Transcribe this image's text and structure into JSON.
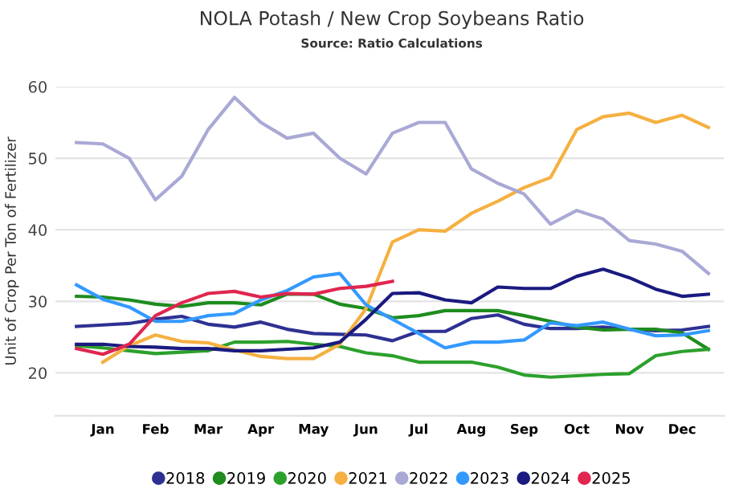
{
  "chart_data": {
    "type": "line",
    "title": "NOLA Potash / New Crop Soybeans Ratio",
    "subtitle": "Source: Ratio Calculations",
    "ylabel": "Unit of Crop Per Ton of Fertilizer",
    "categories": [
      null,
      "Jan",
      null,
      "Feb",
      null,
      "Mar",
      null,
      "Apr",
      null,
      "May",
      null,
      "Jun",
      null,
      "Jul",
      null,
      "Aug",
      null,
      "Sep",
      null,
      "Oct",
      null,
      "Nov",
      null,
      "Dec",
      null
    ],
    "ylim": [
      14,
      60
    ],
    "yticks": [
      20,
      30,
      40,
      50,
      60
    ],
    "grid": "y",
    "legend": "bottom",
    "series": [
      {
        "name": "2018",
        "color": "#2e3192",
        "values": [
          26.5,
          26.7,
          26.9,
          27.5,
          27.9,
          26.8,
          26.4,
          27.1,
          26.1,
          25.5,
          25.4,
          25.3,
          24.5,
          25.8,
          25.8,
          27.6,
          28.1,
          26.8,
          26.2,
          26.2,
          26.4,
          26.1,
          25.9,
          26.0,
          26.5
        ]
      },
      {
        "name": "2019",
        "color": "#1e8c1e",
        "values": [
          30.7,
          30.6,
          30.2,
          29.6,
          29.3,
          29.8,
          29.8,
          29.5,
          31.0,
          31.0,
          29.6,
          29.0,
          27.7,
          28.0,
          28.7,
          28.7,
          28.7,
          28.0,
          27.2,
          26.4,
          26.0,
          26.1,
          26.1,
          25.6,
          23.3
        ]
      },
      {
        "name": "2020",
        "color": "#2ca02c",
        "values": [
          23.8,
          23.5,
          23.1,
          22.7,
          22.9,
          23.1,
          24.3,
          24.3,
          24.4,
          24.0,
          23.7,
          22.8,
          22.4,
          21.5,
          21.5,
          21.5,
          20.8,
          19.7,
          19.4,
          19.6,
          19.8,
          19.9,
          22.4,
          23.0,
          23.3
        ]
      },
      {
        "name": "2021",
        "color": "#f5b041",
        "values": [
          null,
          21.5,
          23.8,
          25.3,
          24.4,
          24.2,
          23.2,
          22.3,
          22.0,
          22.0,
          24.0,
          29.0,
          38.3,
          40.0,
          39.8,
          42.3,
          44.0,
          45.9,
          47.3,
          54.0,
          55.8,
          56.3,
          55.0,
          56.0,
          54.3
        ]
      },
      {
        "name": "2022",
        "color": "#a9a9d6",
        "values": [
          52.2,
          52.0,
          50.0,
          44.2,
          47.5,
          54.0,
          58.5,
          55.0,
          52.8,
          53.5,
          50.0,
          47.8,
          53.5,
          55.0,
          55.0,
          48.5,
          46.5,
          45.0,
          40.8,
          42.7,
          41.5,
          38.5,
          38.0,
          37.0,
          33.9
        ]
      },
      {
        "name": "2023",
        "color": "#3399ff",
        "values": [
          32.3,
          30.3,
          29.2,
          27.2,
          27.2,
          28.0,
          28.3,
          30.2,
          31.5,
          33.4,
          33.9,
          29.5,
          27.5,
          25.5,
          23.5,
          24.3,
          24.3,
          24.6,
          27.0,
          26.6,
          27.1,
          26.1,
          25.2,
          25.3,
          25.9
        ]
      },
      {
        "name": "2024",
        "color": "#1a1a80",
        "values": [
          24.0,
          24.0,
          23.7,
          23.6,
          23.4,
          23.4,
          23.1,
          23.1,
          23.3,
          23.5,
          24.3,
          27.5,
          31.1,
          31.2,
          30.2,
          29.8,
          32.0,
          31.8,
          31.8,
          33.5,
          34.5,
          33.3,
          31.7,
          30.7,
          31.0
        ]
      },
      {
        "name": "2025",
        "color": "#e0264f",
        "values": [
          23.4,
          22.6,
          24.0,
          28.0,
          29.8,
          31.1,
          31.4,
          30.6,
          31.1,
          31.0,
          31.8,
          32.1,
          32.8,
          null,
          null,
          null,
          null,
          null,
          null,
          null,
          null,
          null,
          null,
          null,
          null
        ]
      }
    ]
  }
}
